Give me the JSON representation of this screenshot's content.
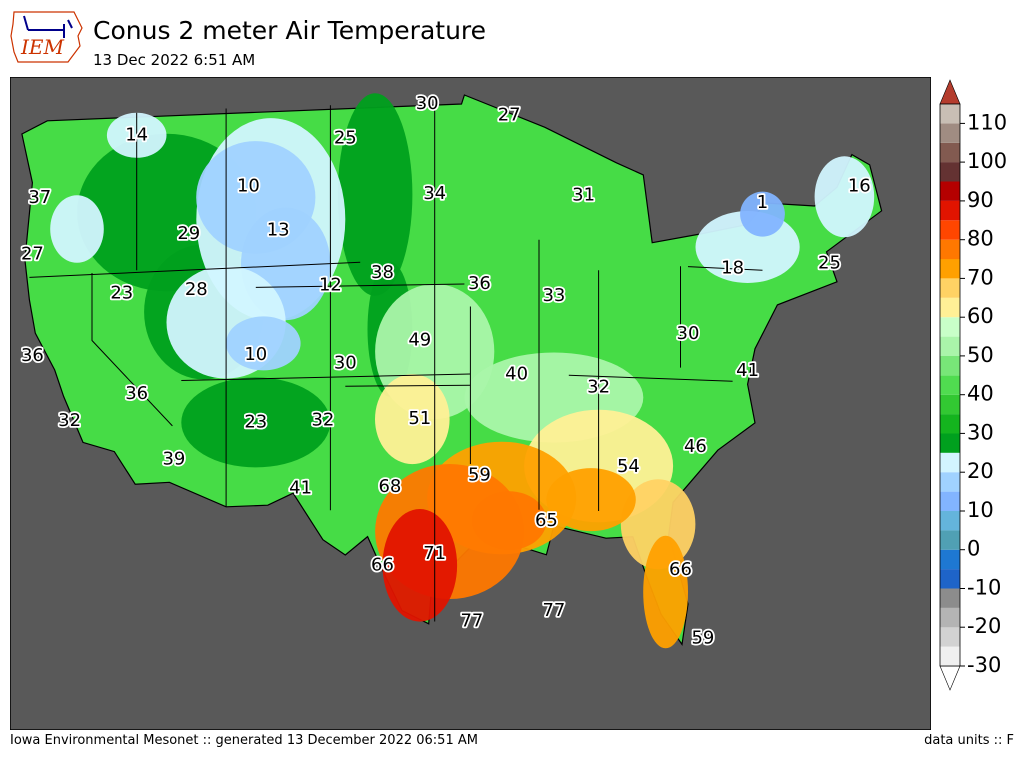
{
  "header": {
    "title": "Conus 2 meter Air Temperature",
    "subtitle": "13 Dec 2022 6:51 AM",
    "logo_text": "IEM"
  },
  "footer": {
    "left": "Iowa Environmental Mesonet :: generated 13 December 2022 06:51 AM",
    "right": "data units :: F"
  },
  "colors": {
    "background": "#ffffff",
    "map_nodata": "#595959",
    "logo_text": "#cc3300",
    "logo_icon": "#00008b"
  },
  "map_labels": [
    {
      "value": "14",
      "lon": -117.0,
      "lat": 48.0
    },
    {
      "value": "37",
      "lon": -123.5,
      "lat": 45.5
    },
    {
      "value": "27",
      "lon": -124.0,
      "lat": 43.0
    },
    {
      "value": "29",
      "lon": -113.5,
      "lat": 43.5
    },
    {
      "value": "23",
      "lon": -118.0,
      "lat": 41.0
    },
    {
      "value": "28",
      "lon": -113.0,
      "lat": 41.0
    },
    {
      "value": "36",
      "lon": -124.0,
      "lat": 38.5
    },
    {
      "value": "36",
      "lon": -117.0,
      "lat": 36.5
    },
    {
      "value": "32",
      "lon": -121.5,
      "lat": 35.5
    },
    {
      "value": "39",
      "lon": -114.5,
      "lat": 33.5
    },
    {
      "value": "23",
      "lon": -109.0,
      "lat": 35.0
    },
    {
      "value": "10",
      "lon": -109.5,
      "lat": 45.5
    },
    {
      "value": "13",
      "lon": -107.5,
      "lat": 43.5
    },
    {
      "value": "12",
      "lon": -104.0,
      "lat": 41.0
    },
    {
      "value": "10",
      "lon": -109.0,
      "lat": 38.0
    },
    {
      "value": "25",
      "lon": -103.0,
      "lat": 47.5
    },
    {
      "value": "30",
      "lon": -97.5,
      "lat": 49.0
    },
    {
      "value": "27",
      "lon": -92.0,
      "lat": 48.5
    },
    {
      "value": "34",
      "lon": -97.0,
      "lat": 45.0
    },
    {
      "value": "38",
      "lon": -100.5,
      "lat": 41.5
    },
    {
      "value": "36",
      "lon": -94.0,
      "lat": 41.0
    },
    {
      "value": "33",
      "lon": -89.0,
      "lat": 40.5
    },
    {
      "value": "31",
      "lon": -87.0,
      "lat": 45.0
    },
    {
      "value": "49",
      "lon": -98.0,
      "lat": 38.5
    },
    {
      "value": "30",
      "lon": -103.0,
      "lat": 37.5
    },
    {
      "value": "40",
      "lon": -91.5,
      "lat": 37.0
    },
    {
      "value": "32",
      "lon": -104.5,
      "lat": 35.0
    },
    {
      "value": "51",
      "lon": -98.0,
      "lat": 35.0
    },
    {
      "value": "41",
      "lon": -106.0,
      "lat": 32.0
    },
    {
      "value": "68",
      "lon": -100.0,
      "lat": 32.0
    },
    {
      "value": "59",
      "lon": -94.0,
      "lat": 32.5
    },
    {
      "value": "32",
      "lon": -86.0,
      "lat": 36.5
    },
    {
      "value": "54",
      "lon": -84.0,
      "lat": 33.0
    },
    {
      "value": "46",
      "lon": -79.5,
      "lat": 34.0
    },
    {
      "value": "30",
      "lon": -80.0,
      "lat": 39.0
    },
    {
      "value": "41",
      "lon": -76.0,
      "lat": 37.5
    },
    {
      "value": "65",
      "lon": -89.5,
      "lat": 30.5
    },
    {
      "value": "71",
      "lon": -97.0,
      "lat": 29.0
    },
    {
      "value": "66",
      "lon": -100.5,
      "lat": 28.5
    },
    {
      "value": "77",
      "lon": -94.5,
      "lat": 26.0
    },
    {
      "value": "77",
      "lon": -89.0,
      "lat": 26.5
    },
    {
      "value": "66",
      "lon": -80.5,
      "lat": 28.5
    },
    {
      "value": "59",
      "lon": -79.0,
      "lat": 25.5
    },
    {
      "value": "18",
      "lon": -77.0,
      "lat": 42.0
    },
    {
      "value": "1",
      "lon": -75.0,
      "lat": 45.0
    },
    {
      "value": "16",
      "lon": -68.5,
      "lat": 46.0
    },
    {
      "value": "25",
      "lon": -70.5,
      "lat": 42.5
    }
  ],
  "colorbar": {
    "levels": [
      -30,
      -25,
      -20,
      -15,
      -10,
      -5,
      0,
      5,
      10,
      15,
      20,
      25,
      30,
      35,
      40,
      45,
      50,
      55,
      60,
      65,
      70,
      75,
      80,
      85,
      90,
      95,
      100,
      105,
      110,
      115
    ],
    "tick_labels": [
      "-30",
      "-20",
      "-10",
      "0",
      "10",
      "20",
      "30",
      "40",
      "50",
      "60",
      "70",
      "80",
      "90",
      "100",
      "110"
    ],
    "colors": [
      "#f0f0f0",
      "#d2d2d2",
      "#b4b4b4",
      "#8c8c8c",
      "#1e64c8",
      "#1e78d2",
      "#50a0b4",
      "#64b4dc",
      "#82b4ff",
      "#a0d2ff",
      "#d2f5ff",
      "#00a01e",
      "#14b41e",
      "#32c832",
      "#50dc50",
      "#78e678",
      "#aaf5aa",
      "#c8ffc8",
      "#fff096",
      "#ffd264",
      "#ffa000",
      "#ff7800",
      "#ff4600",
      "#e11400",
      "#b40000",
      "#643232",
      "#825a50",
      "#a08c82",
      "#c8beb4",
      "#f0dcd2",
      "#ffc8c8",
      "#dcaaaa",
      "#ff7850",
      "#ff5032",
      "#b43c2d"
    ]
  }
}
